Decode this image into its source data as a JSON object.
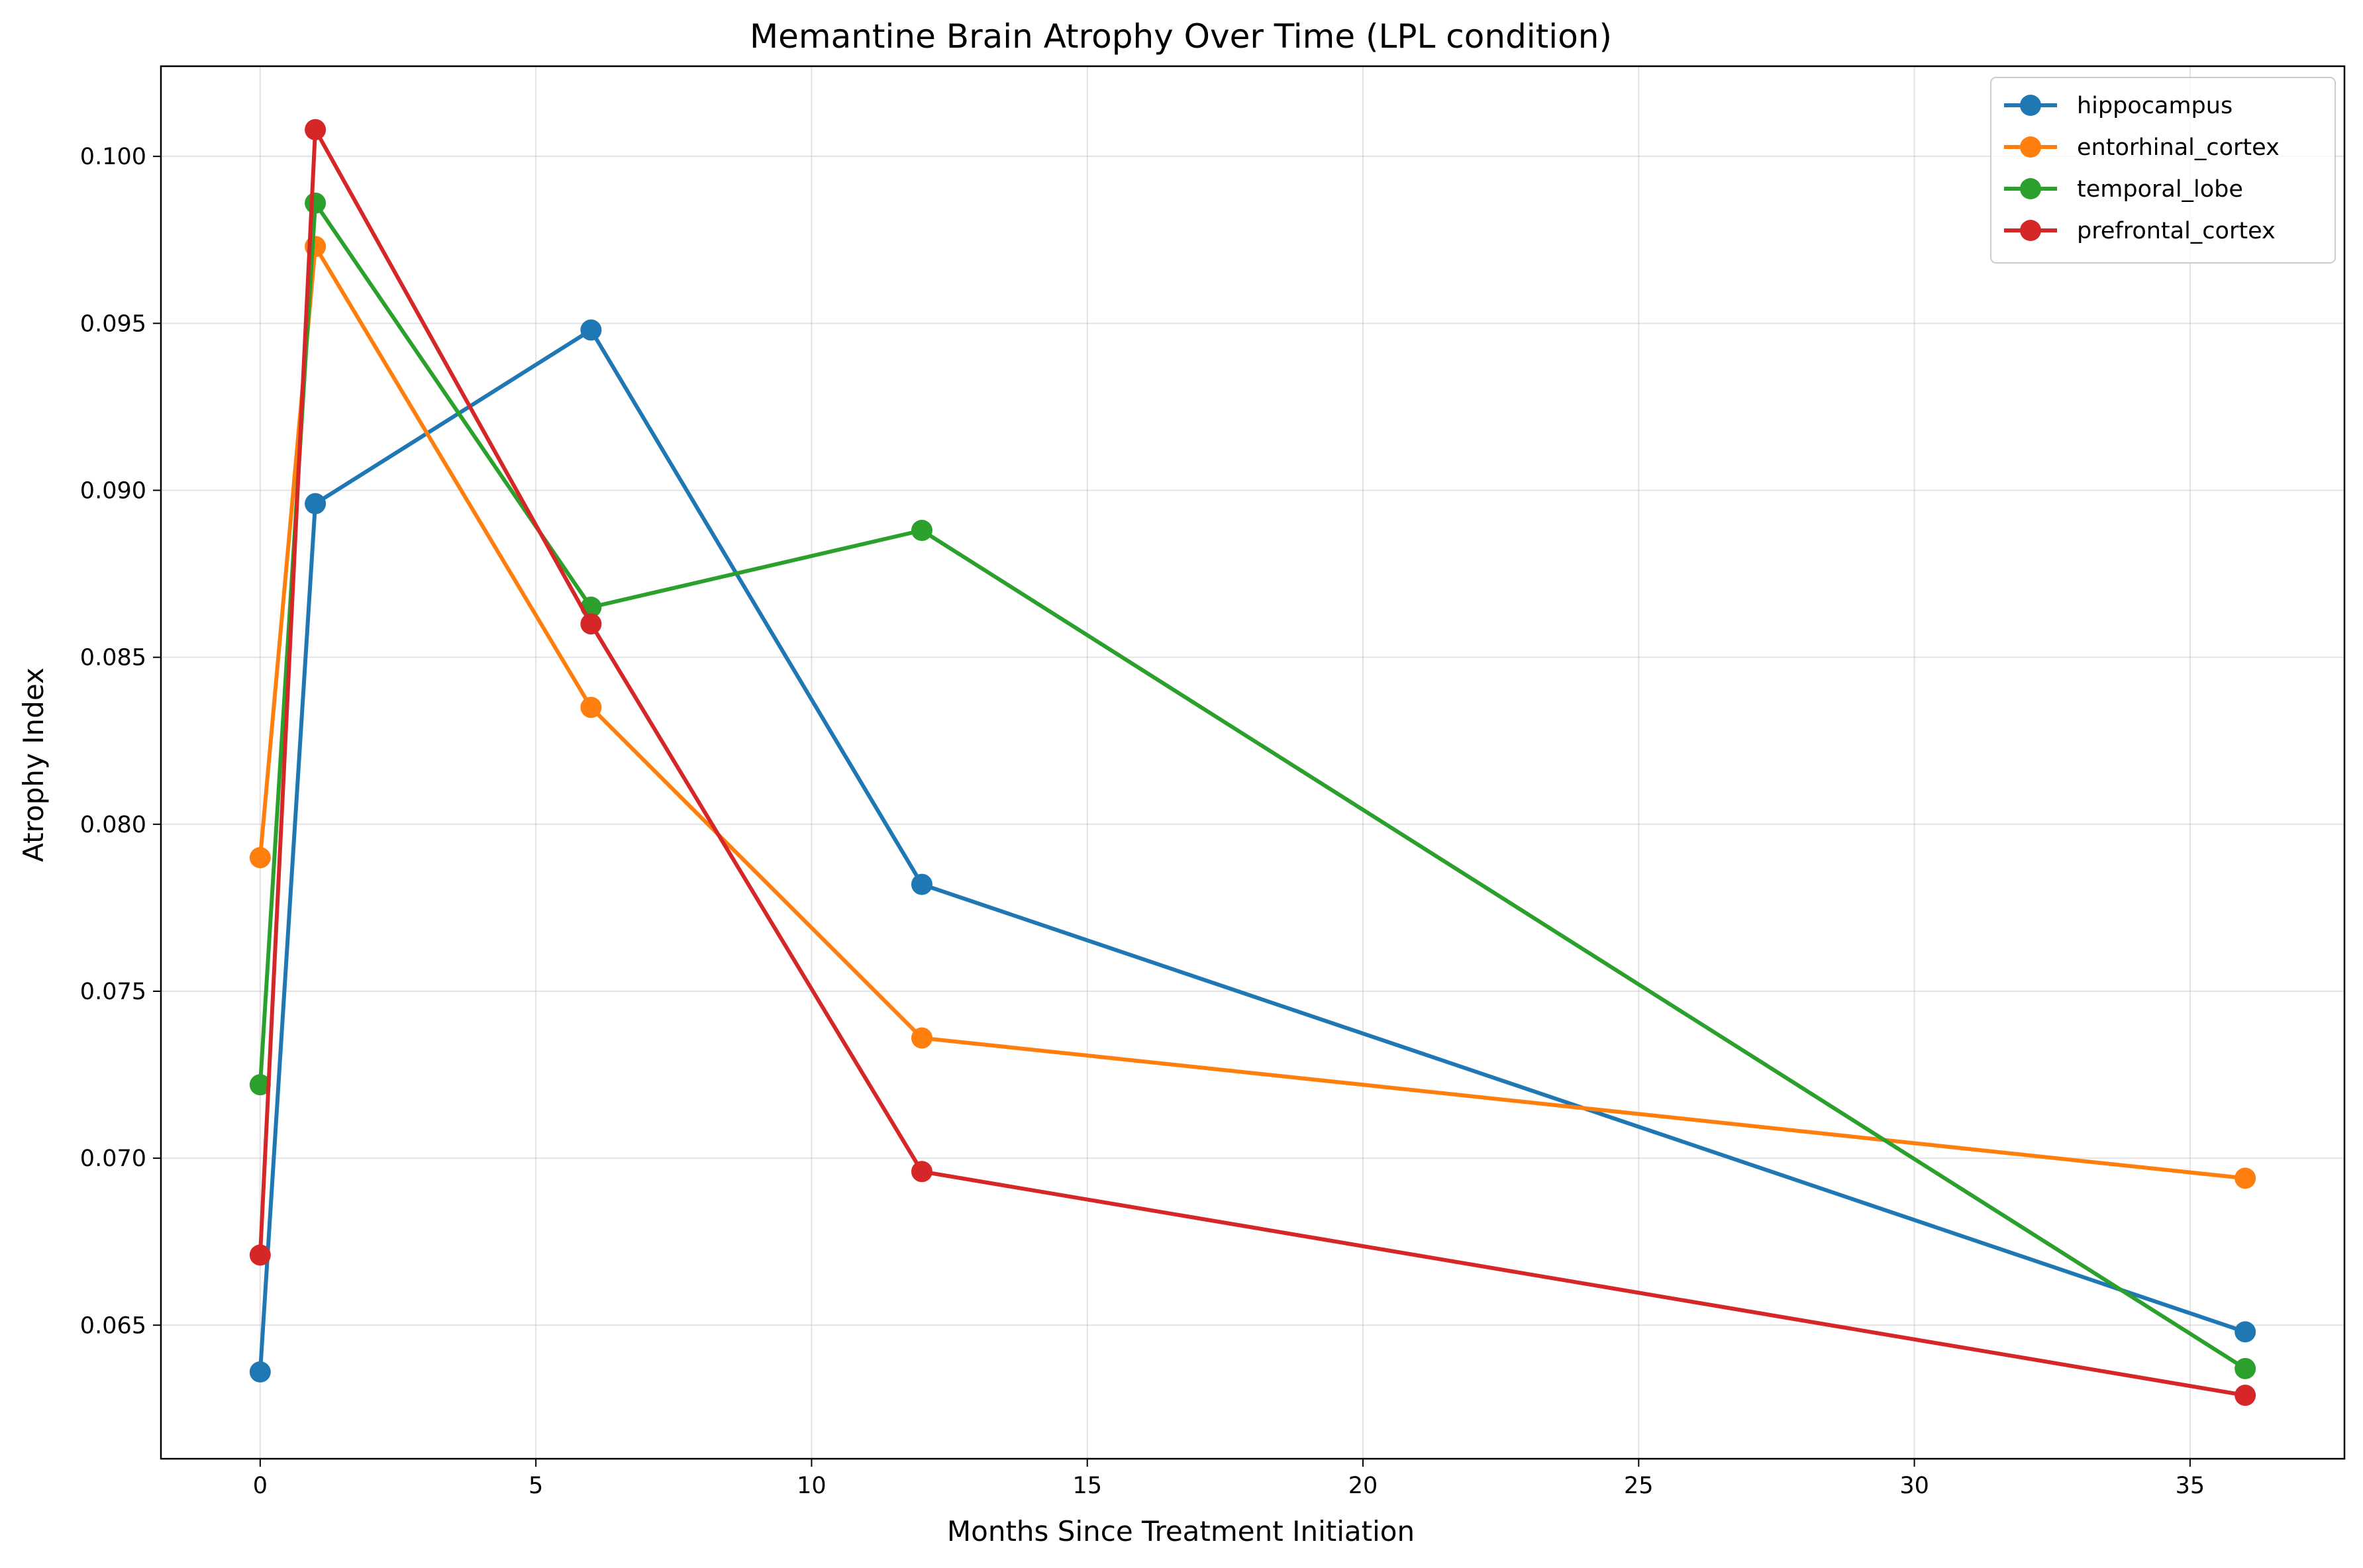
{
  "chart_data": {
    "type": "line",
    "title": "Memantine Brain Atrophy Over Time (LPL condition)",
    "xlabel": "Months Since Treatment Initiation",
    "ylabel": "Atrophy Index",
    "x": [
      0,
      1,
      6,
      12,
      36
    ],
    "xlim": [
      -1.8,
      37.8
    ],
    "ylim": [
      0.061,
      0.1027
    ],
    "xticks": [
      0,
      5,
      10,
      15,
      20,
      25,
      30,
      35
    ],
    "xtick_labels": [
      "0",
      "5",
      "10",
      "15",
      "20",
      "25",
      "30",
      "35"
    ],
    "yticks": [
      0.065,
      0.07,
      0.075,
      0.08,
      0.085,
      0.09,
      0.095,
      0.1
    ],
    "ytick_labels": [
      "0.065",
      "0.070",
      "0.075",
      "0.080",
      "0.085",
      "0.090",
      "0.095",
      "0.100"
    ],
    "grid": true,
    "legend_position": "top-right",
    "series": [
      {
        "name": "hippocampus",
        "color": "#1f77b4",
        "values": [
          0.0636,
          0.0896,
          0.0948,
          0.0782,
          0.0648
        ]
      },
      {
        "name": "entorhinal_cortex",
        "color": "#ff7f0e",
        "values": [
          0.079,
          0.0973,
          0.0835,
          0.0736,
          0.0694
        ]
      },
      {
        "name": "temporal_lobe",
        "color": "#2ca02c",
        "values": [
          0.0722,
          0.0986,
          0.0865,
          0.0888,
          0.0637
        ]
      },
      {
        "name": "prefrontal_cortex",
        "color": "#d62728",
        "values": [
          0.0671,
          0.1008,
          0.086,
          0.0696,
          0.0629
        ]
      }
    ]
  }
}
